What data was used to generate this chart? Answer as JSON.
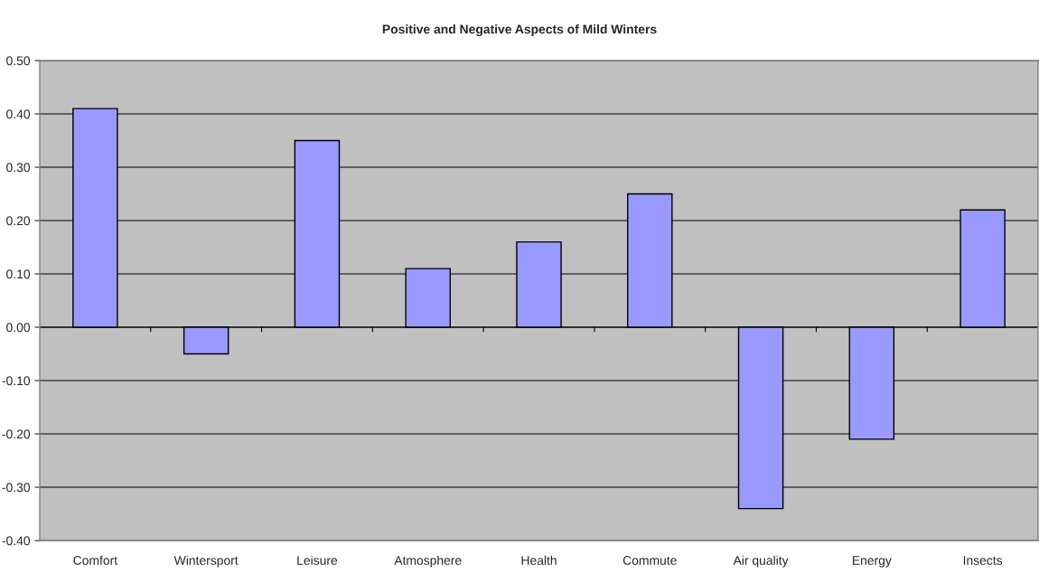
{
  "chart_data": {
    "type": "bar",
    "title": "Positive and Negative Aspects of Mild Winters",
    "categories": [
      "Comfort",
      "Wintersport",
      "Leisure",
      "Atmosphere",
      "Health",
      "Commute",
      "Air quality",
      "Energy",
      "Insects"
    ],
    "values": [
      0.41,
      -0.05,
      0.35,
      0.11,
      0.16,
      0.25,
      -0.34,
      -0.21,
      0.22
    ],
    "color": "#9999ff",
    "ylim": [
      -0.4,
      0.5
    ],
    "yticks": [
      {
        "value": -0.4,
        "label": "-0.40"
      },
      {
        "value": -0.3,
        "label": "-0.30"
      },
      {
        "value": -0.2,
        "label": "-0.20"
      },
      {
        "value": -0.1,
        "label": "-0.10"
      },
      {
        "value": 0,
        "label": "0.00"
      },
      {
        "value": 0.1,
        "label": "0.10"
      },
      {
        "value": 0.2,
        "label": "0.20"
      },
      {
        "value": 0.3,
        "label": "0.30"
      },
      {
        "value": 0.4,
        "label": "0.40"
      },
      {
        "value": 0.5,
        "label": "0.50"
      }
    ],
    "grid": "y",
    "legend": false
  }
}
